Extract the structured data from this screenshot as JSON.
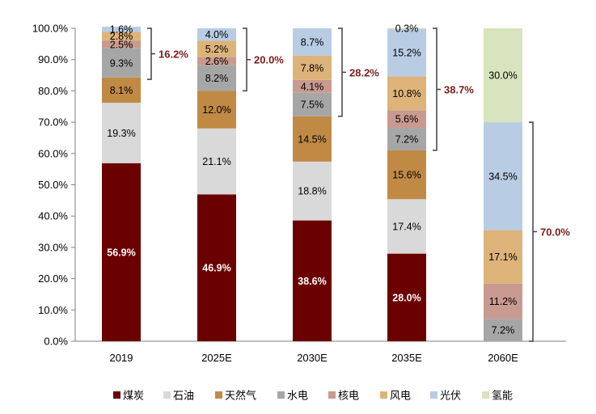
{
  "chart_data": {
    "type": "bar",
    "stacked": true,
    "categories": [
      "2019",
      "2025E",
      "2030E",
      "2035E",
      "2060E"
    ],
    "ylim": [
      0,
      100
    ],
    "yticks": [
      "0.0%",
      "10.0%",
      "20.0%",
      "30.0%",
      "40.0%",
      "50.0%",
      "60.0%",
      "70.0%",
      "80.0%",
      "90.0%",
      "100.0%"
    ],
    "grid": false,
    "legend_position": "bottom",
    "series": [
      {
        "name": "煤炭",
        "color": "#6b0000",
        "values": [
          56.9,
          46.9,
          38.6,
          28.0,
          0
        ]
      },
      {
        "name": "石油",
        "color": "#d9d9d9",
        "values": [
          19.3,
          21.1,
          18.8,
          17.4,
          0
        ]
      },
      {
        "name": "天然气",
        "color": "#c08a45",
        "values": [
          8.1,
          12.0,
          14.5,
          15.6,
          0
        ]
      },
      {
        "name": "水电",
        "color": "#a6a6a6",
        "values": [
          9.3,
          8.2,
          7.5,
          7.2,
          7.2
        ]
      },
      {
        "name": "核电",
        "color": "#c99a90",
        "values": [
          2.5,
          2.6,
          4.1,
          5.6,
          11.2
        ]
      },
      {
        "name": "风电",
        "color": "#ddb37a",
        "values": [
          2.8,
          5.2,
          7.8,
          10.8,
          17.1
        ]
      },
      {
        "name": "光伏",
        "color": "#b8cce4",
        "values": [
          1.6,
          4.0,
          8.7,
          15.2,
          34.5
        ]
      },
      {
        "name": "氢能",
        "color": "#d7e4bd",
        "values": [
          0,
          0,
          0,
          0.3,
          30.0
        ]
      }
    ],
    "labels": [
      [
        "56.9%",
        "19.3%",
        "8.1%",
        "9.3%",
        "2.5%",
        "2.8%",
        "1.6%",
        ""
      ],
      [
        "46.9%",
        "21.1%",
        "12.0%",
        "8.2%",
        "2.6%",
        "5.2%",
        "4.0%",
        ""
      ],
      [
        "38.6%",
        "18.8%",
        "14.5%",
        "7.5%",
        "4.1%",
        "7.8%",
        "8.7%",
        ""
      ],
      [
        "28.0%",
        "17.4%",
        "15.6%",
        "7.2%",
        "5.6%",
        "10.8%",
        "15.2%",
        "0.3%"
      ],
      [
        "",
        "",
        "",
        "7.2%",
        "11.2%",
        "17.1%",
        "34.5%",
        "30.0%"
      ]
    ],
    "annotations": [
      {
        "category": "2019",
        "text": "16.2%",
        "from": 83.7,
        "to": 100
      },
      {
        "category": "2025E",
        "text": "20.0%",
        "from": 80.0,
        "to": 100
      },
      {
        "category": "2030E",
        "text": "28.2%",
        "from": 71.9,
        "to": 100
      },
      {
        "category": "2035E",
        "text": "38.7%",
        "from": 61.0,
        "to": 100
      },
      {
        "category": "2060E",
        "text": "70.0%",
        "from": 0,
        "to": 70.0
      }
    ]
  }
}
